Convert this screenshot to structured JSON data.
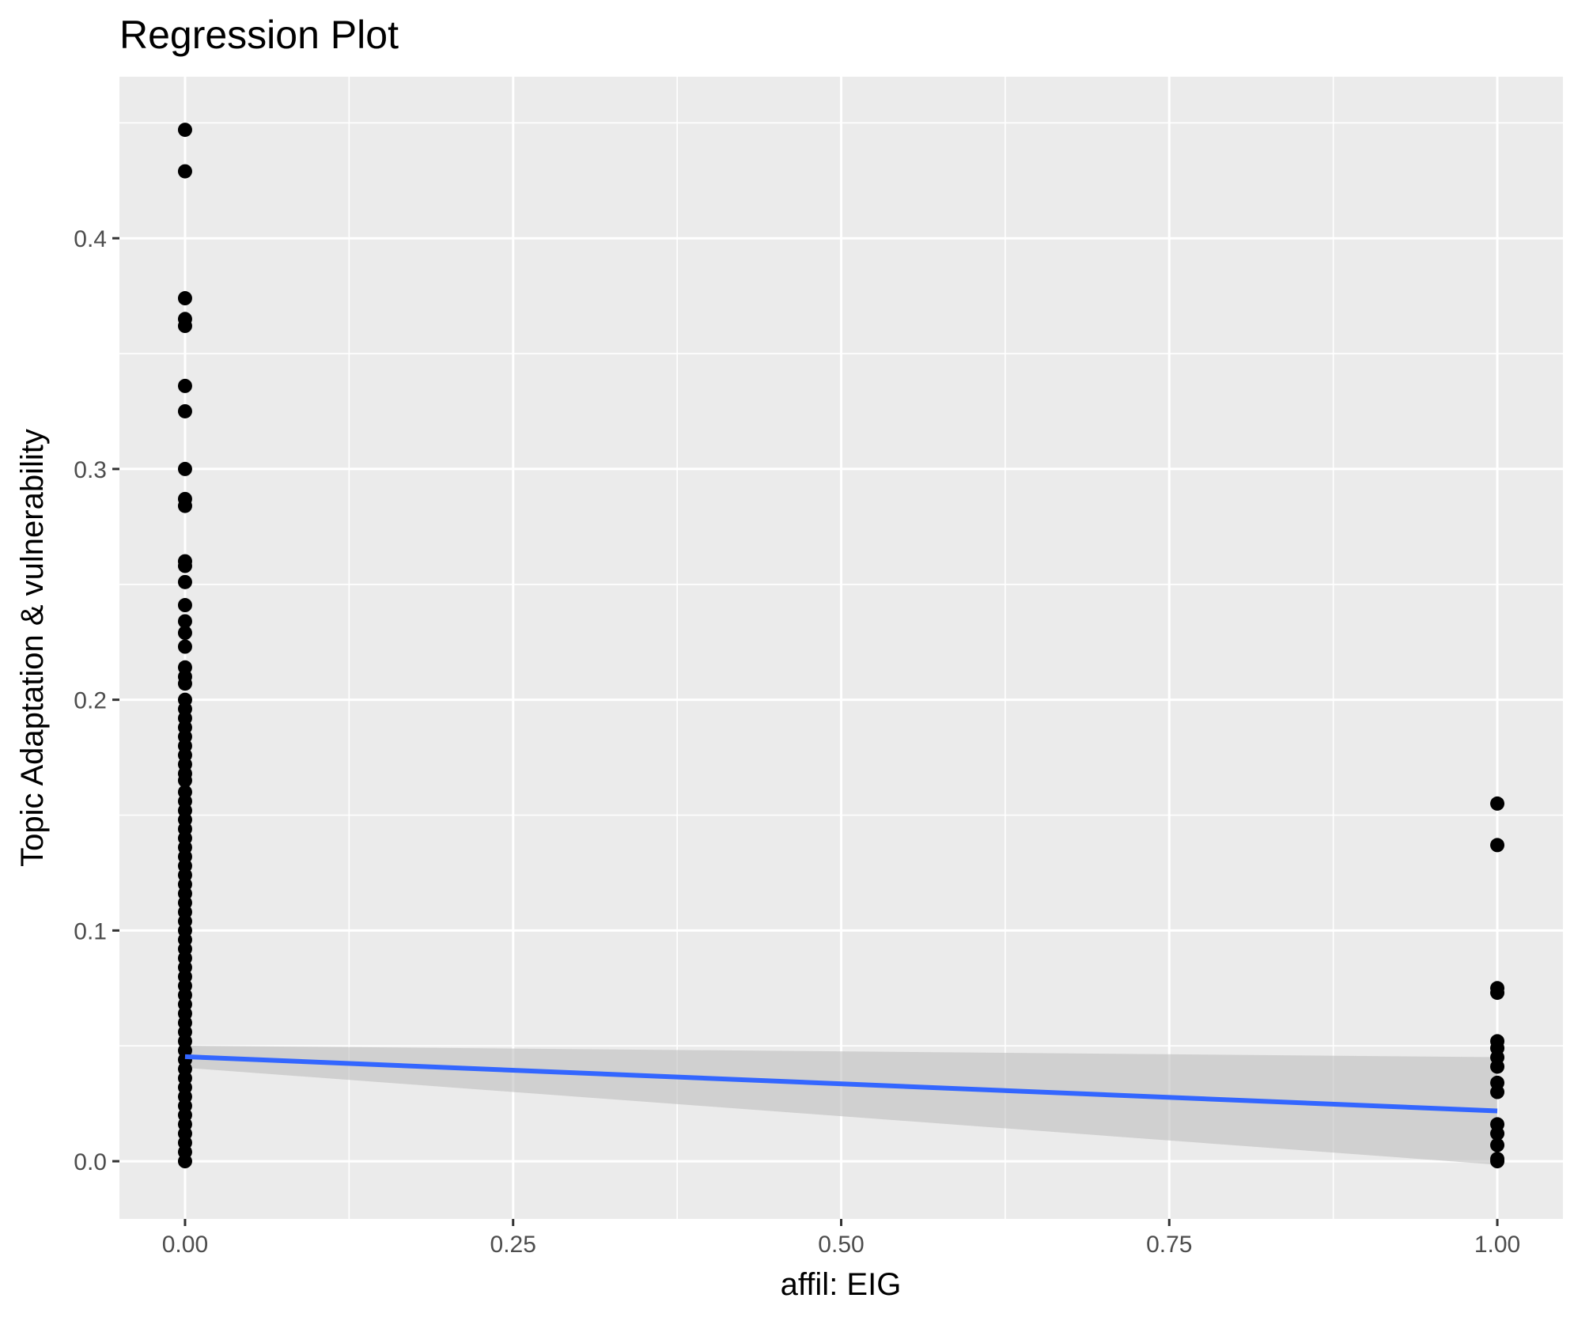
{
  "chart_data": {
    "type": "scatter",
    "title": "Regression Plot",
    "xlabel": "affil: EIG",
    "ylabel": "Topic Adaptation & vulnerability",
    "xlim": [
      -0.05,
      1.05
    ],
    "ylim": [
      -0.025,
      0.47
    ],
    "x_ticks": [
      "0.00",
      "0.25",
      "0.50",
      "0.75",
      "1.00"
    ],
    "y_ticks": [
      "0.0",
      "0.1",
      "0.2",
      "0.3",
      "0.4"
    ],
    "grid": true,
    "colors": {
      "panel": "#EBEBEB",
      "grid": "#FFFFFF",
      "points": "#000000",
      "fit_line": "#3366FF",
      "confidence_band": "#BEBEBE"
    },
    "points": {
      "x0": [
        0.447,
        0.429,
        0.374,
        0.365,
        0.362,
        0.336,
        0.325,
        0.3,
        0.287,
        0.284,
        0.26,
        0.258,
        0.251,
        0.241,
        0.234,
        0.229,
        0.223,
        0.214,
        0.21,
        0.207,
        0.2,
        0.196,
        0.192,
        0.188,
        0.184,
        0.18,
        0.176,
        0.172,
        0.168,
        0.165,
        0.16,
        0.156,
        0.152,
        0.148,
        0.144,
        0.14,
        0.136,
        0.132,
        0.128,
        0.124,
        0.12,
        0.116,
        0.112,
        0.108,
        0.104,
        0.1,
        0.096,
        0.092,
        0.088,
        0.084,
        0.08,
        0.076,
        0.072,
        0.068,
        0.064,
        0.06,
        0.056,
        0.052,
        0.048,
        0.044,
        0.04,
        0.036,
        0.032,
        0.028,
        0.024,
        0.02,
        0.016,
        0.012,
        0.008,
        0.004,
        0.0
      ],
      "x1": [
        0.155,
        0.137,
        0.075,
        0.073,
        0.052,
        0.049,
        0.045,
        0.041,
        0.034,
        0.03,
        0.016,
        0.012,
        0.007,
        0.001,
        0.0
      ]
    },
    "fit": {
      "x": [
        0,
        1
      ],
      "y": [
        0.0453,
        0.0218
      ],
      "band_lower": [
        0.0405,
        -0.0015
      ],
      "band_upper": [
        0.0501,
        0.0451
      ]
    }
  }
}
